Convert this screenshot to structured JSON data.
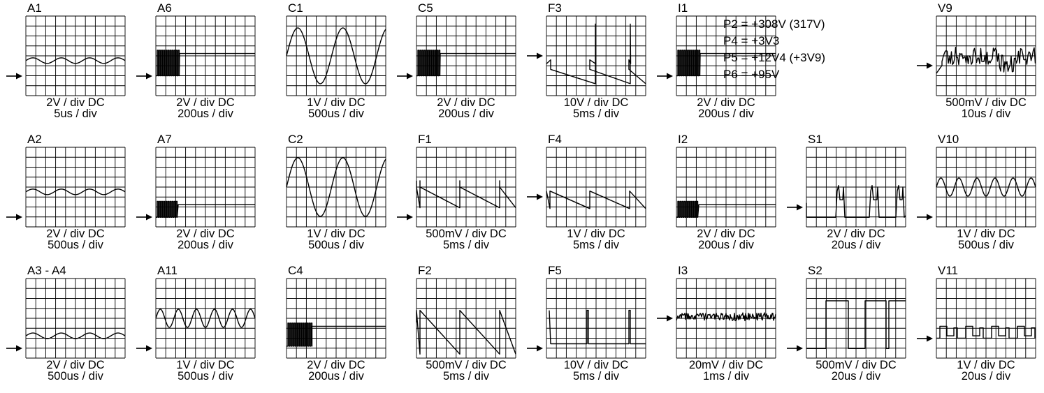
{
  "panels": [
    {
      "label": "A1",
      "volts": "2V / div DC",
      "time": "5us / div",
      "wave": "sine-small",
      "arrow": 0.75
    },
    {
      "label": "A6",
      "volts": "2V / div DC",
      "time": "200us / div",
      "wave": "burst",
      "arrow": 0.75
    },
    {
      "label": "C1",
      "volts": "1V / div DC",
      "time": "500us / div",
      "wave": "sine-big",
      "arrow": null
    },
    {
      "label": "C5",
      "volts": "2V / div DC",
      "time": "200us / div",
      "wave": "burst",
      "arrow": 0.75
    },
    {
      "label": "F3",
      "volts": "10V / div DC",
      "time": "5ms / div",
      "wave": "ramp-spike",
      "arrow": 0.5
    },
    {
      "label": "I1",
      "volts": "2V / div DC",
      "time": "200us / div",
      "wave": "burst",
      "arrow": 0.75
    },
    {
      "label": "V9",
      "volts": "500mV / div DC",
      "time": "10us / div",
      "wave": "noisy-steps",
      "arrow": 0.62
    },
    {
      "label": "A2",
      "volts": "2V / div DC",
      "time": "500us / div",
      "wave": "sine-small",
      "arrow": 0.88
    },
    {
      "label": "A7",
      "volts": "2V / div DC",
      "time": "200us / div",
      "wave": "burst-low",
      "arrow": 0.88
    },
    {
      "label": "C2",
      "volts": "1V / div DC",
      "time": "500us / div",
      "wave": "sine-large",
      "arrow": null
    },
    {
      "label": "F1",
      "volts": "500mV / div DC",
      "time": "5ms / div",
      "wave": "saw",
      "arrow": 0.88
    },
    {
      "label": "F4",
      "volts": "1V / div DC",
      "time": "5ms / div",
      "wave": "saw-high",
      "arrow": 0.62
    },
    {
      "label": "I2",
      "volts": "2V / div DC",
      "time": "200us / div",
      "wave": "burst-low",
      "arrow": null
    },
    {
      "label": "S1",
      "volts": "2V / div DC",
      "time": "20us / div",
      "wave": "pulses",
      "arrow": 0.75
    },
    {
      "label": "V10",
      "volts": "1V / div DC",
      "time": "500us / div",
      "wave": "sine-mid",
      "arrow": 0.88
    },
    {
      "label": "A3 - A4",
      "volts": "2V / div DC",
      "time": "500us / div",
      "wave": "sine-small-low",
      "arrow": 0.88
    },
    {
      "label": "A11",
      "volts": "1V / div DC",
      "time": "500us / div",
      "wave": "sine-mid",
      "arrow": 0.88
    },
    {
      "label": "C4",
      "volts": "2V / div DC",
      "time": "200us / div",
      "wave": "burst-c4",
      "arrow": null
    },
    {
      "label": "F2",
      "volts": "500mV / div DC",
      "time": "5ms / div",
      "wave": "saw-tall",
      "arrow": null
    },
    {
      "label": "F5",
      "volts": "10V / div DC",
      "time": "5ms / div",
      "wave": "spikes",
      "arrow": 0.88
    },
    {
      "label": "I3",
      "volts": "20mV / div DC",
      "time": "1ms / div",
      "wave": "noise",
      "arrow": 0.5
    },
    {
      "label": "S2",
      "volts": "500mV / div DC",
      "time": "20us / div",
      "wave": "square",
      "arrow": 0.88
    },
    {
      "label": "V11",
      "volts": "1V / div DC",
      "time": "20us / div",
      "wave": "steps",
      "arrow": 0.75
    }
  ],
  "voltages": [
    "P2 = +308V (317V)",
    "P4 = +3V3",
    "P5 = +12V4 (+3V9)",
    "P6 = +95V"
  ]
}
